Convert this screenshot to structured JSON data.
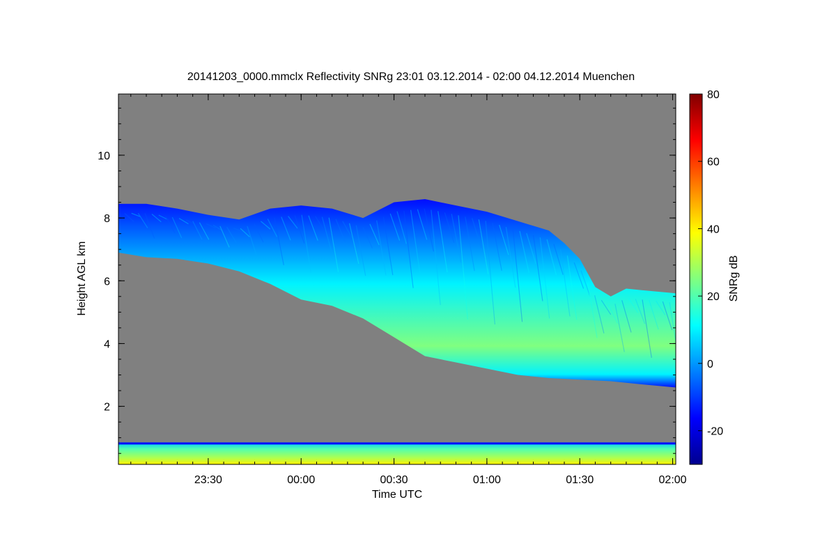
{
  "chart_data": {
    "type": "heatmap",
    "title": "20141203_0000.mmclx Reflectivity SNRg   23:01 03.12.2014 - 02:00 04.12.2014 Muenchen",
    "xlabel": "Time UTC",
    "ylabel": "Height AGL km",
    "colorbar_label": "SNRg dB",
    "x_range": [
      "23:01",
      "02:01"
    ],
    "xlim_minutes": [
      -59,
      121
    ],
    "ylim_km": [
      0.15,
      11.95
    ],
    "x_ticks": [
      {
        "label": "23:30",
        "minutes": -30
      },
      {
        "label": "00:00",
        "minutes": 0
      },
      {
        "label": "00:30",
        "minutes": 30
      },
      {
        "label": "01:00",
        "minutes": 60
      },
      {
        "label": "01:30",
        "minutes": 90
      },
      {
        "label": "02:00",
        "minutes": 120
      }
    ],
    "y_ticks": [
      {
        "label": "2",
        "value": 2
      },
      {
        "label": "4",
        "value": 4
      },
      {
        "label": "6",
        "value": 6
      },
      {
        "label": "8",
        "value": 8
      },
      {
        "label": "10",
        "value": 10
      }
    ],
    "colorbar": {
      "min": -30,
      "max": 80,
      "ticks": [
        {
          "label": "-20",
          "value": -20
        },
        {
          "label": "0",
          "value": 0
        },
        {
          "label": "20",
          "value": 20
        },
        {
          "label": "40",
          "value": 40
        },
        {
          "label": "60",
          "value": 60
        },
        {
          "label": "80",
          "value": 80
        }
      ],
      "colormap": [
        "#00008f",
        "#0000ff",
        "#0080ff",
        "#00ffff",
        "#80ff80",
        "#ffff00",
        "#ff8000",
        "#ff0000",
        "#800000"
      ]
    },
    "background_color": "#808080",
    "cloud_layer": {
      "top_km": [
        [
          -59,
          8.45
        ],
        [
          -50,
          8.45
        ],
        [
          -40,
          8.3
        ],
        [
          -30,
          8.1
        ],
        [
          -20,
          7.95
        ],
        [
          -10,
          8.3
        ],
        [
          0,
          8.4
        ],
        [
          10,
          8.3
        ],
        [
          20,
          8.0
        ],
        [
          30,
          8.5
        ],
        [
          40,
          8.6
        ],
        [
          50,
          8.4
        ],
        [
          60,
          8.2
        ],
        [
          70,
          7.9
        ],
        [
          80,
          7.6
        ],
        [
          85,
          7.2
        ],
        [
          90,
          6.7
        ],
        [
          95,
          5.8
        ],
        [
          100,
          5.5
        ],
        [
          105,
          5.75
        ],
        [
          110,
          5.7
        ],
        [
          121,
          5.6
        ]
      ],
      "base_km": [
        [
          -59,
          6.9
        ],
        [
          -50,
          6.75
        ],
        [
          -40,
          6.7
        ],
        [
          -30,
          6.55
        ],
        [
          -20,
          6.3
        ],
        [
          -10,
          5.9
        ],
        [
          0,
          5.4
        ],
        [
          10,
          5.2
        ],
        [
          20,
          4.8
        ],
        [
          30,
          4.2
        ],
        [
          40,
          3.6
        ],
        [
          50,
          3.4
        ],
        [
          60,
          3.2
        ],
        [
          70,
          3.0
        ],
        [
          80,
          2.9
        ],
        [
          90,
          2.85
        ],
        [
          100,
          2.8
        ],
        [
          110,
          2.7
        ],
        [
          121,
          2.6
        ]
      ],
      "top_snr_db": -15,
      "core_snr_db": 25
    },
    "ground_clutter": {
      "top_km": 0.85,
      "bottom_km": 0.15,
      "snr_db": [
        20,
        40
      ]
    }
  }
}
